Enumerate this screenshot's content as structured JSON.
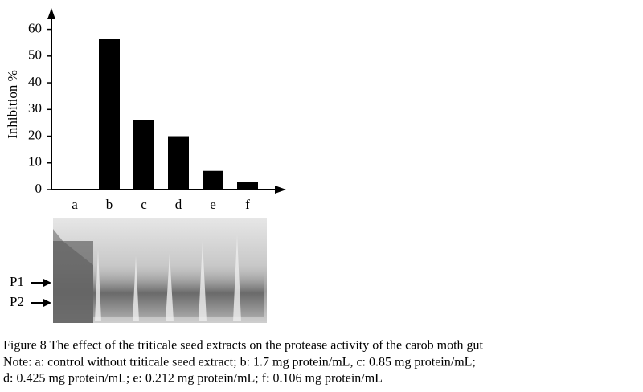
{
  "chart_data": {
    "type": "bar",
    "y_label": "Inhibition %",
    "categories": [
      "a",
      "b",
      "c",
      "d",
      "e",
      "f"
    ],
    "values": [
      0,
      56.5,
      26,
      20,
      7,
      3
    ],
    "color": "#000000",
    "ylim": [
      0,
      68
    ],
    "yticks": [
      0,
      10,
      20,
      30,
      40,
      50,
      60
    ],
    "grid": false
  },
  "gel": {
    "markers": [
      "P1",
      "P2"
    ]
  },
  "caption": {
    "title": "Figure 8 The effect of the triticale seed extracts on the protease activity of the carob moth gut",
    "note": [
      "Note: a: control without triticale seed extract; b: 1.7 mg protein/mL, c: 0.85 mg protein/mL;",
      "d: 0.425 mg protein/mL; e: 0.212 mg protein/mL; f: 0.106 mg protein/mL"
    ]
  }
}
